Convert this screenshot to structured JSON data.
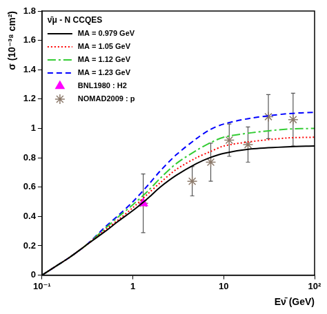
{
  "chart_data": {
    "type": "line",
    "title": "ν̄μ - N CCQES",
    "x_label": "Eν̄ (GeV)",
    "y_label": "σ (10⁻³⁸ cm²)",
    "log": "x",
    "grid": false,
    "legend": "upper left",
    "xlim": [
      0.1,
      100
    ],
    "xticks": [
      {
        "value": 0.1,
        "label": "10⁻¹"
      },
      1,
      10,
      {
        "value": 100,
        "label": "10²"
      }
    ],
    "ylim": [
      0,
      1.8
    ],
    "yticks": [
      0,
      0.2,
      0.4,
      0.6,
      0.8,
      1,
      1.2,
      1.4,
      1.6,
      1.8
    ],
    "series": [
      {
        "name": "MA = 0.979 GeV",
        "type": "line",
        "color": "#000000",
        "line_style": "solid",
        "x": [
          0.1,
          0.15,
          0.2,
          0.3,
          0.5,
          0.7,
          1,
          1.5,
          2,
          3,
          5,
          7,
          10,
          20,
          50,
          100
        ],
        "values": [
          0,
          0.07,
          0.12,
          0.2,
          0.3,
          0.37,
          0.44,
          0.53,
          0.6,
          0.68,
          0.76,
          0.8,
          0.83,
          0.86,
          0.875,
          0.88
        ]
      },
      {
        "name": "MA = 1.05 GeV",
        "type": "line",
        "color": "#ff0000",
        "line_style": "dotted",
        "x": [
          0.1,
          0.15,
          0.2,
          0.3,
          0.5,
          0.7,
          1,
          1.5,
          2,
          3,
          5,
          7,
          10,
          20,
          50,
          100
        ],
        "values": [
          0,
          0.07,
          0.12,
          0.2,
          0.31,
          0.38,
          0.46,
          0.56,
          0.63,
          0.72,
          0.8,
          0.84,
          0.88,
          0.91,
          0.935,
          0.94
        ]
      },
      {
        "name": "MA = 1.12 GeV",
        "type": "line",
        "color": "#33cc33",
        "line_style": "dashdot",
        "x": [
          0.1,
          0.15,
          0.2,
          0.3,
          0.5,
          0.7,
          1,
          1.5,
          2,
          3,
          5,
          7,
          10,
          20,
          50,
          100
        ],
        "values": [
          0,
          0.07,
          0.12,
          0.2,
          0.32,
          0.4,
          0.48,
          0.58,
          0.66,
          0.76,
          0.85,
          0.9,
          0.94,
          0.97,
          0.995,
          1.0
        ]
      },
      {
        "name": "MA = 1.23 GeV",
        "type": "line",
        "color": "#0000ff",
        "line_style": "dashed",
        "x": [
          0.1,
          0.15,
          0.2,
          0.3,
          0.5,
          0.7,
          1,
          1.5,
          2,
          3,
          5,
          7,
          10,
          20,
          50,
          100
        ],
        "values": [
          0,
          0.07,
          0.12,
          0.2,
          0.33,
          0.41,
          0.5,
          0.62,
          0.71,
          0.82,
          0.93,
          0.99,
          1.03,
          1.07,
          1.1,
          1.11
        ]
      },
      {
        "name": "BNL1980 : H2",
        "type": "scatter",
        "color": "#ff00ff",
        "marker": "triangle",
        "x": [
          1.3
        ],
        "values": [
          0.49
        ]
      },
      {
        "name": "NOMAD2009 : p",
        "type": "scatter",
        "color": "#8c7a6b",
        "marker": "star",
        "x": [
          1.3,
          4.5,
          7.2,
          11.5,
          18.5,
          31,
          58
        ],
        "values": [
          0.49,
          0.64,
          0.77,
          0.92,
          0.89,
          1.08,
          1.06
        ],
        "errors": [
          0.2,
          0.1,
          0.13,
          0.11,
          0.12,
          0.15,
          0.18
        ]
      }
    ]
  }
}
